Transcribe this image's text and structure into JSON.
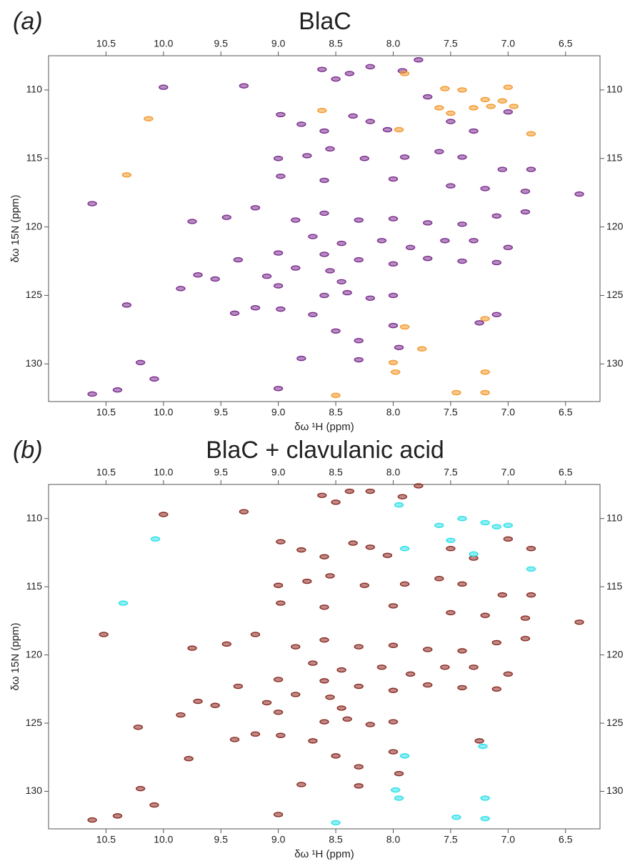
{
  "chart_data": [
    {
      "type": "scatter",
      "panel_label": "(a)",
      "title": "BlaC",
      "xlabel": "δω ¹H (ppm)",
      "ylabel": "δω 15N (ppm)",
      "xlim": [
        11.0,
        6.2
      ],
      "ylim": [
        132.75,
        107.5
      ],
      "xticks": [
        10.5,
        {
          "value": 10,
          "label": "10.0"
        },
        9.5,
        {
          "value": 9,
          "label": "9.0"
        },
        8.5,
        {
          "value": 8,
          "label": "8.0"
        },
        7.5,
        {
          "value": 7,
          "label": "7.0"
        },
        6.5
      ],
      "yticks": [
        110,
        115,
        120,
        125,
        130
      ],
      "series": [
        {
          "color": "#7b2d8e",
          "x": [
            10.62,
            10.0,
            9.3,
            8.98,
            8.8,
            8.62,
            8.5,
            8.38,
            8.2,
            7.92,
            7.78,
            8.6,
            8.35,
            8.2,
            8.05,
            8.55,
            8.75,
            9.0,
            8.25,
            7.9,
            7.6,
            7.4,
            7.05,
            6.8,
            8.6,
            8.98,
            8.0,
            7.5,
            7.2,
            6.85,
            6.38,
            9.2,
            9.45,
            9.75,
            8.85,
            8.6,
            8.3,
            8.0,
            7.7,
            7.4,
            7.1,
            6.85,
            8.7,
            8.45,
            8.1,
            7.85,
            7.55,
            7.3,
            7.0,
            9.0,
            8.6,
            8.3,
            8.0,
            7.7,
            7.4,
            7.1,
            9.35,
            8.85,
            8.55,
            9.1,
            9.7,
            9.55,
            8.45,
            9.0,
            8.6,
            8.4,
            9.85,
            8.2,
            8.0,
            9.38,
            9.2,
            8.98,
            8.7,
            10.32,
            8.5,
            8.0,
            7.25,
            7.1,
            8.3,
            7.95,
            8.8,
            8.3,
            10.2,
            10.08,
            10.62,
            10.4,
            9.0,
            7.3,
            7.5,
            7.0,
            7.7
          ],
          "values": [
            118.3,
            109.8,
            109.7,
            111.8,
            112.5,
            108.5,
            109.2,
            108.8,
            108.3,
            108.6,
            107.8,
            113.0,
            111.9,
            112.3,
            112.9,
            114.3,
            114.8,
            115.0,
            115.0,
            114.9,
            114.5,
            114.9,
            115.8,
            115.8,
            116.6,
            116.3,
            116.5,
            117.0,
            117.2,
            117.4,
            117.6,
            118.6,
            119.3,
            119.6,
            119.5,
            119.0,
            119.5,
            119.4,
            119.7,
            119.8,
            119.2,
            118.9,
            120.7,
            121.2,
            121.0,
            121.5,
            121.0,
            121.0,
            121.5,
            121.9,
            122.0,
            122.4,
            122.7,
            122.3,
            122.5,
            122.6,
            122.4,
            123.0,
            123.2,
            123.6,
            123.5,
            123.8,
            124.0,
            124.3,
            125.0,
            124.8,
            124.5,
            125.2,
            125.0,
            126.3,
            125.9,
            126.0,
            126.4,
            125.7,
            127.6,
            127.2,
            127.0,
            126.4,
            128.3,
            128.8,
            129.6,
            129.7,
            129.9,
            131.1,
            132.2,
            131.9,
            131.8,
            113.0,
            112.3,
            111.6,
            110.5
          ]
        },
        {
          "color": "#f39a2e",
          "x": [
            10.13,
            10.32,
            8.62,
            7.95,
            7.9,
            7.55,
            7.4,
            7.2,
            7.05,
            6.95,
            7.0,
            7.6,
            7.5,
            7.3,
            7.15,
            6.8,
            7.9,
            7.75,
            7.2,
            8.0,
            7.98,
            7.2,
            8.5,
            7.45,
            7.2
          ],
          "values": [
            112.1,
            116.2,
            111.5,
            112.9,
            108.8,
            109.9,
            110.0,
            110.7,
            110.8,
            111.2,
            109.8,
            111.3,
            111.7,
            111.3,
            111.2,
            113.2,
            127.3,
            128.9,
            126.7,
            129.9,
            130.6,
            130.6,
            132.3,
            132.1,
            132.1
          ]
        }
      ]
    },
    {
      "type": "scatter",
      "panel_label": "(b)",
      "title": "BlaC + clavulanic acid",
      "xlabel": "δω ¹H (ppm)",
      "ylabel": "δω 15N (ppm)",
      "xlim": [
        11.0,
        6.2
      ],
      "ylim": [
        132.75,
        107.5
      ],
      "xticks": [
        10.5,
        {
          "value": 10,
          "label": "10.0"
        },
        9.5,
        {
          "value": 9,
          "label": "9.0"
        },
        8.5,
        {
          "value": 8,
          "label": "8.0"
        },
        7.5,
        {
          "value": 7,
          "label": "7.0"
        },
        6.5
      ],
      "yticks": [
        110,
        115,
        120,
        125,
        130
      ],
      "series": [
        {
          "color": "#8b2a22",
          "x": [
            10.0,
            9.3,
            8.98,
            8.8,
            8.62,
            8.5,
            8.38,
            8.2,
            7.92,
            7.78,
            8.6,
            8.35,
            8.2,
            8.05,
            8.55,
            8.75,
            9.0,
            8.25,
            7.9,
            7.6,
            7.4,
            7.05,
            6.8,
            8.6,
            8.98,
            8.0,
            7.5,
            7.2,
            6.85,
            6.38,
            9.2,
            9.45,
            9.75,
            8.85,
            8.6,
            8.3,
            8.0,
            7.7,
            7.4,
            7.1,
            6.85,
            8.7,
            8.45,
            8.1,
            7.85,
            7.55,
            7.3,
            7.0,
            9.0,
            8.6,
            8.3,
            8.0,
            7.7,
            7.4,
            7.1,
            9.35,
            8.85,
            8.55,
            9.1,
            9.7,
            9.55,
            8.45,
            9.0,
            8.6,
            8.4,
            9.85,
            8.2,
            8.0,
            9.38,
            9.2,
            8.98,
            8.7,
            8.5,
            8.0,
            7.25,
            8.3,
            7.95,
            8.8,
            8.3,
            10.2,
            10.08,
            10.62,
            10.4,
            9.0,
            7.3,
            7.5,
            7.0,
            6.8,
            10.52,
            10.22,
            9.78
          ],
          "values": [
            109.7,
            109.5,
            111.7,
            112.3,
            108.3,
            108.8,
            108.0,
            108.0,
            108.4,
            107.6,
            112.8,
            111.8,
            112.1,
            112.7,
            114.2,
            114.6,
            114.9,
            114.9,
            114.8,
            114.4,
            114.8,
            115.6,
            115.6,
            116.5,
            116.2,
            116.4,
            116.9,
            117.1,
            117.3,
            117.6,
            118.5,
            119.2,
            119.5,
            119.4,
            118.9,
            119.4,
            119.3,
            119.6,
            119.7,
            119.1,
            118.8,
            120.6,
            121.1,
            120.9,
            121.4,
            120.9,
            120.9,
            121.4,
            121.8,
            121.9,
            122.3,
            122.6,
            122.2,
            122.4,
            122.5,
            122.3,
            122.9,
            123.1,
            123.5,
            123.4,
            123.7,
            123.9,
            124.2,
            124.9,
            124.7,
            124.4,
            125.1,
            124.9,
            126.2,
            125.8,
            125.9,
            126.3,
            127.4,
            127.1,
            126.3,
            128.2,
            128.7,
            129.5,
            129.6,
            129.8,
            131.0,
            132.1,
            131.8,
            131.7,
            112.9,
            112.2,
            111.5,
            112.2,
            118.5,
            125.3,
            127.6
          ]
        },
        {
          "color": "#2fe0ea",
          "x": [
            10.35,
            10.07,
            7.95,
            7.6,
            7.4,
            7.2,
            7.1,
            7.0,
            7.5,
            7.9,
            7.3,
            6.8,
            7.9,
            7.22,
            7.98,
            7.95,
            7.2,
            8.5,
            7.45,
            7.2
          ],
          "values": [
            116.2,
            111.5,
            109.0,
            110.5,
            110.0,
            110.3,
            110.6,
            110.5,
            111.6,
            112.2,
            112.6,
            113.7,
            127.4,
            126.7,
            129.9,
            130.5,
            130.5,
            132.3,
            131.9,
            132.0
          ]
        }
      ]
    }
  ]
}
